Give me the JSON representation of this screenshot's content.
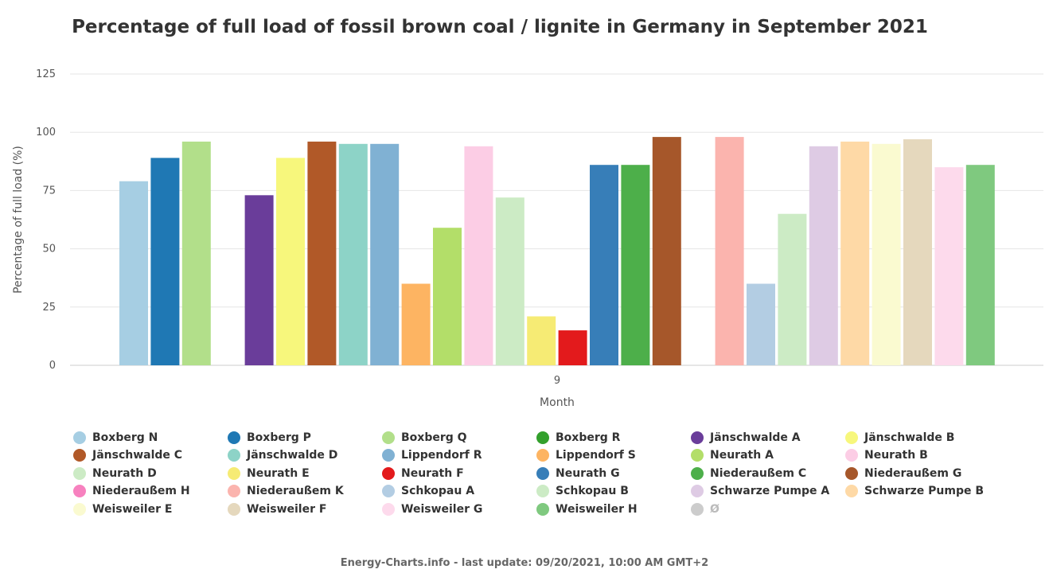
{
  "chart_data": {
    "type": "bar",
    "title": "Percentage of full load of fossil brown coal / lignite in Germany in September 2021",
    "xlabel": "Month",
    "ylabel": "Percentage of full load (%)",
    "categories": [
      "9"
    ],
    "ylim": [
      0,
      125
    ],
    "yticks": [
      0,
      25,
      50,
      75,
      100,
      125
    ],
    "grid": true,
    "legend_position": "bottom",
    "series": [
      {
        "name": "Boxberg N",
        "color": "#a6cee3",
        "values": [
          79
        ]
      },
      {
        "name": "Boxberg P",
        "color": "#1f78b4",
        "values": [
          89
        ]
      },
      {
        "name": "Boxberg Q",
        "color": "#b2df8a",
        "values": [
          96
        ]
      },
      {
        "name": "Boxberg R",
        "color": "#33a02c",
        "values": [
          null
        ]
      },
      {
        "name": "Jänschwalde A",
        "color": "#6a3d9a",
        "values": [
          73
        ]
      },
      {
        "name": "Jänschwalde B",
        "color": "#f7f77c",
        "values": [
          89
        ]
      },
      {
        "name": "Jänschwalde C",
        "color": "#b15928",
        "values": [
          96
        ]
      },
      {
        "name": "Jänschwalde D",
        "color": "#8dd3c7",
        "values": [
          95
        ]
      },
      {
        "name": "Lippendorf R",
        "color": "#80b1d3",
        "values": [
          95
        ]
      },
      {
        "name": "Lippendorf S",
        "color": "#fdb462",
        "values": [
          35
        ]
      },
      {
        "name": "Neurath A",
        "color": "#b3de69",
        "values": [
          59
        ]
      },
      {
        "name": "Neurath B",
        "color": "#fccde5",
        "values": [
          94
        ]
      },
      {
        "name": "Neurath D",
        "color": "#ccebc5",
        "values": [
          72
        ]
      },
      {
        "name": "Neurath E",
        "color": "#f6eb74",
        "values": [
          21
        ]
      },
      {
        "name": "Neurath F",
        "color": "#e31a1c",
        "values": [
          15
        ]
      },
      {
        "name": "Neurath G",
        "color": "#377eb8",
        "values": [
          86
        ]
      },
      {
        "name": "Niederaußem C",
        "color": "#4daf4a",
        "values": [
          86
        ]
      },
      {
        "name": "Niederaußem G",
        "color": "#a6572a",
        "values": [
          98
        ]
      },
      {
        "name": "Niederaußem H",
        "color": "#f781bf",
        "values": [
          null
        ]
      },
      {
        "name": "Niederaußem K",
        "color": "#fbb4ae",
        "values": [
          98
        ]
      },
      {
        "name": "Schkopau A",
        "color": "#b3cde3",
        "values": [
          35
        ]
      },
      {
        "name": "Schkopau B",
        "color": "#ccebc5",
        "values": [
          65
        ]
      },
      {
        "name": "Schwarze Pumpe A",
        "color": "#decbe4",
        "values": [
          94
        ]
      },
      {
        "name": "Schwarze Pumpe B",
        "color": "#fed9a6",
        "values": [
          96
        ]
      },
      {
        "name": "Weisweiler E",
        "color": "#fafad0",
        "values": [
          95
        ]
      },
      {
        "name": "Weisweiler F",
        "color": "#e5d8bd",
        "values": [
          97
        ]
      },
      {
        "name": "Weisweiler G",
        "color": "#fddaec",
        "values": [
          85
        ]
      },
      {
        "name": "Weisweiler H",
        "color": "#7fc97f",
        "values": [
          86
        ]
      },
      {
        "name": "Ø",
        "color": "#cccccc",
        "values": [
          null
        ],
        "muted": true
      }
    ]
  },
  "credit": "Energy-Charts.info - last update: 09/20/2021, 10:00 AM GMT+2"
}
